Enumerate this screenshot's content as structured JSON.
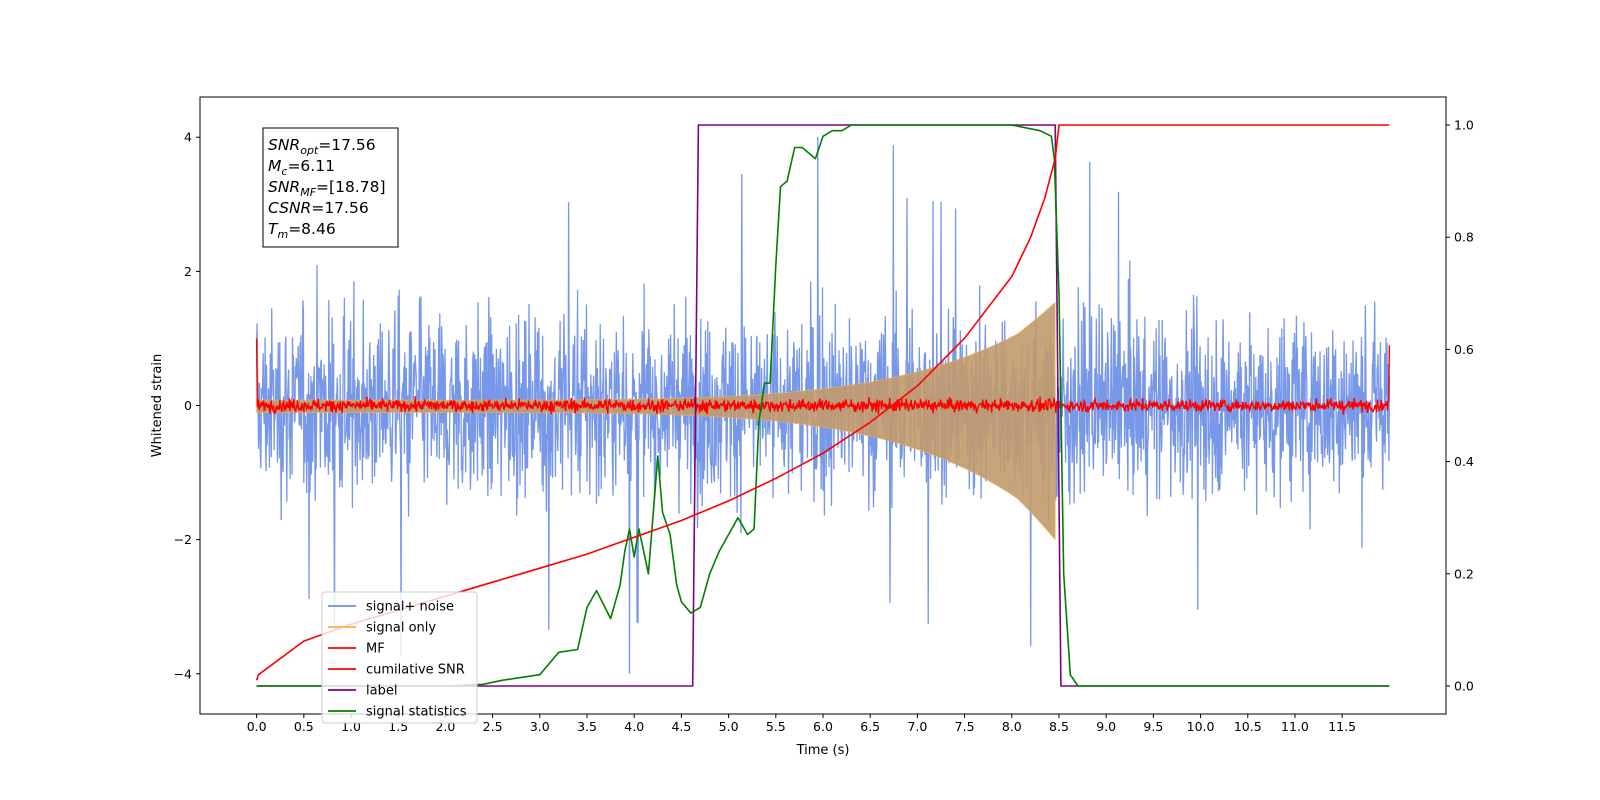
{
  "chart_data": {
    "type": "line",
    "xlabel": "Time (s)",
    "ylabel": "Whitened strain",
    "xlim": [
      -0.6,
      12.6
    ],
    "ylim": [
      -4.6,
      4.6
    ],
    "ylim_right": [
      -0.05,
      1.05
    ],
    "x_ticks": [
      "0.0",
      "0.5",
      "1.0",
      "1.5",
      "2.0",
      "2.5",
      "3.0",
      "3.5",
      "4.0",
      "4.5",
      "5.0",
      "5.5",
      "6.0",
      "6.5",
      "7.0",
      "7.5",
      "8.0",
      "8.5",
      "9.0",
      "9.5",
      "10.0",
      "10.5",
      "11.0",
      "11.5"
    ],
    "y_ticks_left": [
      "−4",
      "−2",
      "0",
      "2",
      "4"
    ],
    "y_ticks_right": [
      "0.0",
      "0.2",
      "0.4",
      "0.6",
      "0.8",
      "1.0"
    ],
    "grid": false,
    "legend_placement": "lower-left",
    "annotation": {
      "lines": [
        {
          "sym": "SNR",
          "sub": "opt",
          "val": "=17.56"
        },
        {
          "sym": "M",
          "sub": "c",
          "val": "=6.11"
        },
        {
          "sym": "SNR",
          "sub": "MF",
          "val": "=[18.78]"
        },
        {
          "sym": "CSNR",
          "sub": "",
          "val": "=17.56"
        },
        {
          "sym": "T",
          "sub": "m",
          "val": "=8.46"
        }
      ]
    },
    "series": [
      {
        "name": "signal+ noise",
        "color": "#6b8ee6",
        "axis": "left",
        "style": "noise",
        "x_range": [
          0,
          12
        ],
        "envelope": 2.3,
        "peak_max": 4.15,
        "peak_min": -4.0
      },
      {
        "name": "signal only",
        "color": "#f5b24e",
        "axis": "left",
        "style": "chirp",
        "x_range": [
          0,
          8.46
        ],
        "amplitude_start": 0.08,
        "amplitude_end": 1.4
      },
      {
        "name": "MF",
        "color": "#ff0000",
        "axis": "left",
        "style": "noise-small",
        "x_range": [
          0,
          12
        ],
        "level": 0.0,
        "amplitude": 0.12,
        "start_value": 1.0,
        "end_value": 0.9
      },
      {
        "name": "cumilative SNR",
        "color": "#ff0000",
        "axis": "right",
        "x": [
          0.0,
          0.02,
          0.5,
          1.0,
          1.5,
          2.0,
          2.5,
          3.0,
          3.5,
          4.0,
          4.5,
          5.0,
          5.5,
          6.0,
          6.5,
          7.0,
          7.5,
          8.0,
          8.2,
          8.35,
          8.46,
          8.5,
          12.0
        ],
        "y": [
          0.01,
          0.02,
          0.08,
          0.11,
          0.135,
          0.16,
          0.185,
          0.21,
          0.235,
          0.265,
          0.295,
          0.33,
          0.37,
          0.415,
          0.47,
          0.535,
          0.62,
          0.73,
          0.8,
          0.87,
          0.94,
          1.0,
          1.0
        ]
      },
      {
        "name": "label",
        "color": "#800080",
        "axis": "right",
        "x": [
          0.0,
          4.62,
          4.68,
          8.46,
          8.52,
          12.0
        ],
        "y": [
          0.0,
          0.0,
          1.0,
          1.0,
          0.0,
          0.0
        ]
      },
      {
        "name": "signal statistics",
        "color": "#008000",
        "axis": "right",
        "x": [
          0.0,
          1.0,
          2.0,
          2.4,
          2.6,
          3.0,
          3.1,
          3.2,
          3.4,
          3.5,
          3.6,
          3.75,
          3.85,
          3.9,
          3.95,
          4.0,
          4.05,
          4.1,
          4.15,
          4.25,
          4.3,
          4.38,
          4.45,
          4.5,
          4.6,
          4.7,
          4.8,
          4.9,
          5.0,
          5.1,
          5.2,
          5.27,
          5.32,
          5.38,
          5.44,
          5.5,
          5.55,
          5.62,
          5.7,
          5.78,
          5.85,
          5.92,
          6.0,
          6.1,
          6.2,
          6.3,
          6.5,
          7.0,
          8.0,
          8.3,
          8.42,
          8.45,
          8.5,
          8.55,
          8.62,
          8.7,
          12.0
        ],
        "y": [
          0.0,
          0.0,
          0.0,
          0.003,
          0.01,
          0.02,
          0.04,
          0.06,
          0.065,
          0.14,
          0.17,
          0.12,
          0.18,
          0.24,
          0.28,
          0.23,
          0.28,
          0.24,
          0.2,
          0.41,
          0.31,
          0.27,
          0.18,
          0.15,
          0.13,
          0.14,
          0.2,
          0.24,
          0.27,
          0.3,
          0.27,
          0.28,
          0.47,
          0.54,
          0.54,
          0.75,
          0.89,
          0.9,
          0.96,
          0.96,
          0.95,
          0.94,
          0.98,
          0.99,
          0.99,
          1.0,
          1.0,
          1.0,
          1.0,
          0.99,
          0.98,
          0.94,
          0.7,
          0.2,
          0.02,
          0.0,
          0.0
        ]
      }
    ]
  }
}
